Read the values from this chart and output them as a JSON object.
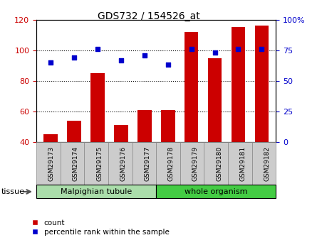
{
  "title": "GDS732 / 154526_at",
  "samples": [
    "GSM29173",
    "GSM29174",
    "GSM29175",
    "GSM29176",
    "GSM29177",
    "GSM29178",
    "GSM29179",
    "GSM29180",
    "GSM29181",
    "GSM29182"
  ],
  "counts": [
    45,
    54,
    85,
    51,
    61,
    61,
    112,
    95,
    115,
    116
  ],
  "percentiles": [
    65,
    69,
    76,
    67,
    71,
    63,
    76,
    73,
    76,
    76
  ],
  "ylim_left": [
    40,
    120
  ],
  "ylim_right": [
    0,
    100
  ],
  "yticks_left": [
    40,
    60,
    80,
    100,
    120
  ],
  "yticks_right": [
    0,
    25,
    50,
    75,
    100
  ],
  "ytick_labels_right": [
    "0",
    "25",
    "50",
    "75",
    "100%"
  ],
  "bar_color": "#cc0000",
  "dot_color": "#0000cc",
  "tissue_groups": [
    {
      "label": "Malpighian tubule",
      "start": 0,
      "end": 5,
      "color": "#aaddaa"
    },
    {
      "label": "whole organism",
      "start": 5,
      "end": 10,
      "color": "#44cc44"
    }
  ],
  "legend_count_label": "count",
  "legend_pct_label": "percentile rank within the sample",
  "legend_count_color": "#cc0000",
  "legend_pct_color": "#0000cc",
  "grid_color": "black",
  "grid_linestyle": "dotted",
  "grid_linewidth": 0.8,
  "bg_color": "#ffffff",
  "tick_label_color_left": "#cc0000",
  "tick_label_color_right": "#0000cc",
  "tissue_label": "tissue",
  "xtick_bg_color": "#cccccc",
  "xtick_border_color": "#888888"
}
